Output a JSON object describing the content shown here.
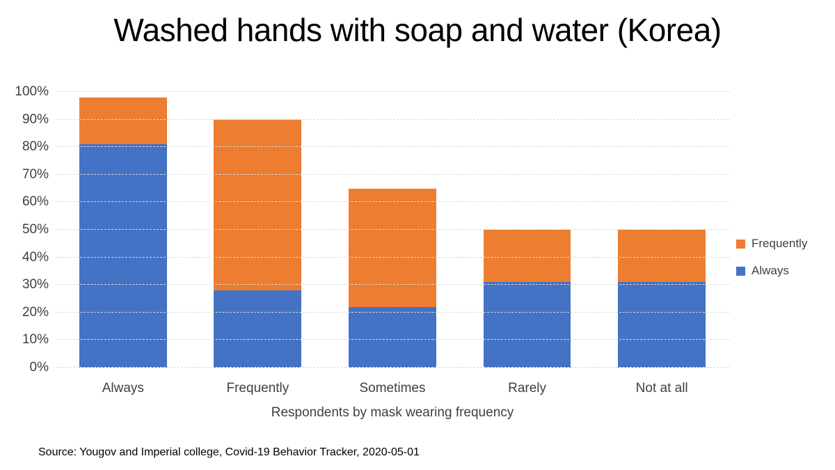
{
  "chart_data": {
    "type": "bar",
    "stacked": true,
    "title": "Washed hands with soap and water (Korea)",
    "categories": [
      "Always",
      "Frequently",
      "Sometimes",
      "Rarely",
      "Not at all"
    ],
    "series": [
      {
        "name": "Always",
        "color": "#4472C4",
        "values": [
          81,
          28,
          22,
          31,
          31
        ]
      },
      {
        "name": "Frequently",
        "color": "#ED7D31",
        "values": [
          17,
          62,
          43,
          19,
          19
        ]
      }
    ],
    "stack_totals": [
      98,
      90,
      65,
      50,
      50
    ],
    "xlabel": "Respondents by mask wearing frequency",
    "ylabel": "",
    "ylim": [
      0,
      100
    ],
    "ytick_step": 10,
    "ytick_labels": [
      "0%",
      "10%",
      "20%",
      "30%",
      "40%",
      "50%",
      "60%",
      "70%",
      "80%",
      "90%",
      "100%"
    ],
    "grid": true,
    "gridline_color": "#d9d9d9",
    "legend": {
      "position": "right",
      "entries": [
        {
          "label": "Frequently",
          "color": "#ED7D31"
        },
        {
          "label": "Always",
          "color": "#4472C4"
        }
      ]
    },
    "source": "Source: Yougov and Imperial college, Covid-19 Behavior Tracker, 2020-05-01"
  }
}
